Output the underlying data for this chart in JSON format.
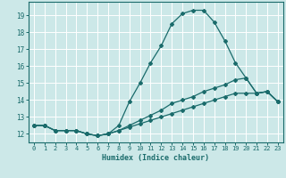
{
  "xlabel": "Humidex (Indice chaleur)",
  "xlim": [
    -0.5,
    23.5
  ],
  "ylim": [
    11.5,
    19.8
  ],
  "yticks": [
    12,
    13,
    14,
    15,
    16,
    17,
    18,
    19
  ],
  "xticks": [
    0,
    1,
    2,
    3,
    4,
    5,
    6,
    7,
    8,
    9,
    10,
    11,
    12,
    13,
    14,
    15,
    16,
    17,
    18,
    19,
    20,
    21,
    22,
    23
  ],
  "bg_color": "#cce8e8",
  "line_color": "#1a6b6b",
  "grid_color": "#ffffff",
  "curve1_x": [
    0,
    1,
    2,
    3,
    4,
    5,
    6,
    7,
    8,
    9,
    10,
    11,
    12,
    13,
    14,
    15,
    16,
    17,
    18,
    19,
    20,
    21,
    22,
    23
  ],
  "curve1_y": [
    12.5,
    12.5,
    12.2,
    12.2,
    12.2,
    12.0,
    11.9,
    12.0,
    12.5,
    13.9,
    15.0,
    16.2,
    17.2,
    18.5,
    19.1,
    19.3,
    19.3,
    18.6,
    17.5,
    16.2,
    15.3,
    14.4,
    14.5,
    13.9
  ],
  "curve2_x": [
    0,
    1,
    2,
    3,
    4,
    5,
    6,
    7,
    8,
    9,
    10,
    11,
    12,
    13,
    14,
    15,
    16,
    17,
    18,
    19,
    20,
    21,
    22,
    23
  ],
  "curve2_y": [
    12.5,
    12.5,
    12.2,
    12.2,
    12.2,
    12.0,
    11.9,
    12.0,
    12.2,
    12.5,
    12.8,
    13.1,
    13.4,
    13.8,
    14.0,
    14.2,
    14.5,
    14.7,
    14.9,
    15.2,
    15.3,
    14.4,
    14.5,
    13.9
  ],
  "curve3_x": [
    0,
    1,
    2,
    3,
    4,
    5,
    6,
    7,
    8,
    9,
    10,
    11,
    12,
    13,
    14,
    15,
    16,
    17,
    18,
    19,
    20,
    21,
    22,
    23
  ],
  "curve3_y": [
    12.5,
    12.5,
    12.2,
    12.2,
    12.2,
    12.0,
    11.9,
    12.0,
    12.2,
    12.4,
    12.6,
    12.8,
    13.0,
    13.2,
    13.4,
    13.6,
    13.8,
    14.0,
    14.2,
    14.4,
    14.4,
    14.4,
    14.5,
    13.9
  ]
}
